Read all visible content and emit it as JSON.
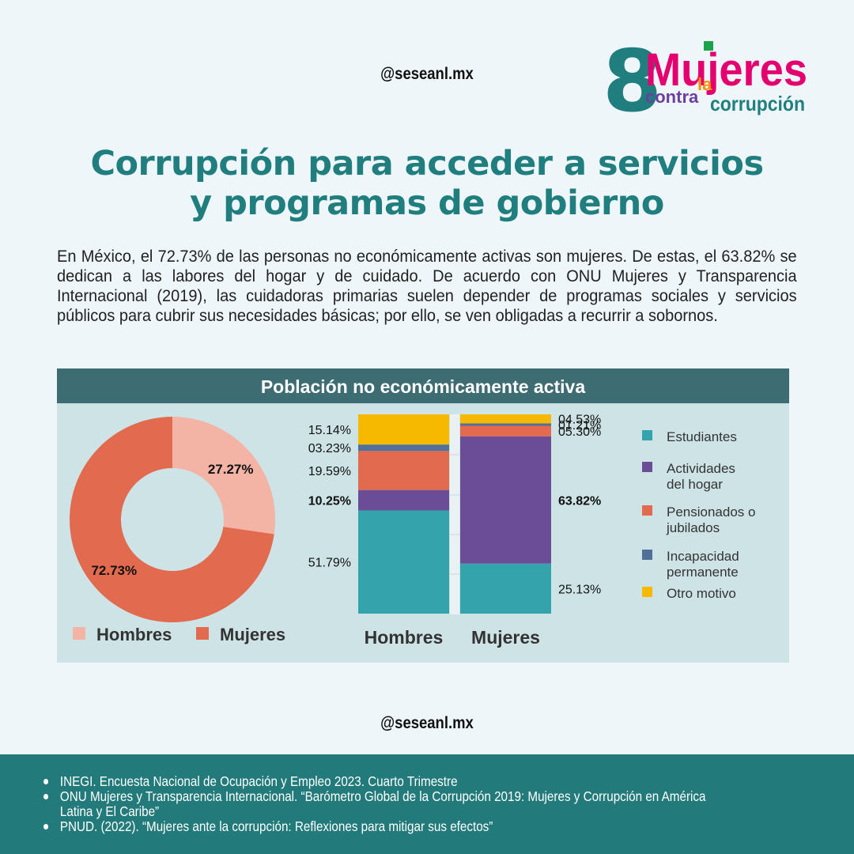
{
  "handle_top": "@seseanl.mx",
  "handle_bottom": "@seseanl.mx",
  "logo": {
    "number": "8",
    "word1": "Mujeres",
    "word2": "contra",
    "word3": "la",
    "word4": "corrupción"
  },
  "title_lines": [
    "Corrupción para acceder a servicios",
    "y programas de gobierno"
  ],
  "intro": "En México, el 72.73% de las personas no económicamente activas son mujeres. De estas, el 63.82% se dedican a las labores del hogar y de cuidado. De acuerdo con ONU Mujeres y Transparencia Internacional (2019), las cuidadoras primarias suelen depender de programas sociales y servicios públicos para cubrir sus necesidades básicas; por ello, se ven obligadas a recurrir a sobornos.",
  "panel_title": "Población no económicamente activa",
  "colors": {
    "teal": "#34a3ab",
    "purple": "#6b4c96",
    "orange": "#e26a4f",
    "blue": "#50709a",
    "yellow": "#f6b900",
    "pink": "#f3b4a5",
    "header": "#3d6c72",
    "title": "#207e7f"
  },
  "chart_data": [
    {
      "type": "pie",
      "labels": [
        "Hombres",
        "Mujeres"
      ],
      "values": [
        27.27,
        72.73
      ],
      "value_labels": [
        "27.27%",
        "72.73%"
      ],
      "colors": [
        "#f3b4a5",
        "#e26a4f"
      ],
      "legend_position": "bottom"
    },
    {
      "type": "bar",
      "stacked": true,
      "categories": [
        "Hombres",
        "Mujeres"
      ],
      "series": [
        {
          "name": "Estudiantes",
          "values": [
            51.79,
            25.13
          ],
          "labels": [
            "51.79%",
            "25.13%"
          ],
          "color": "#34a3ab"
        },
        {
          "name": "Actividades del hogar",
          "values": [
            10.25,
            63.82
          ],
          "labels": [
            "10.25%",
            "63.82%"
          ],
          "color": "#6b4c96"
        },
        {
          "name": "Pensionados o jubilados",
          "values": [
            19.59,
            5.3
          ],
          "labels": [
            "19.59%",
            "05.30%"
          ],
          "color": "#e26a4f"
        },
        {
          "name": "Incapacidad permanente",
          "values": [
            3.23,
            1.21
          ],
          "labels": [
            "03.23%",
            "01.21%"
          ],
          "color": "#50709a"
        },
        {
          "name": "Otro motivo",
          "values": [
            15.14,
            4.53
          ],
          "labels": [
            "15.14%",
            "04.53%"
          ],
          "color": "#f6b900"
        }
      ],
      "legend_entries": [
        [
          "Estudiantes"
        ],
        [
          "Actividades",
          "del hogar"
        ],
        [
          "Pensionados o",
          "jubilados"
        ],
        [
          "Incapacidad",
          "permanente"
        ],
        [
          "Otro motivo"
        ]
      ],
      "ylim": [
        0,
        100
      ],
      "legend_position": "right"
    }
  ],
  "sources": [
    [
      "INEGI. Encuesta Nacional de Ocupación y Empleo 2023. Cuarto Trimestre"
    ],
    [
      "ONU Mujeres y Transparencia Internacional. “Barómetro Global de la Corrupción 2019: Mujeres y Corrupción en América",
      "Latina y El Caribe”"
    ],
    [
      "PNUD. (2022). “Mujeres ante la corrupción: Reflexiones para mitigar sus efectos”"
    ]
  ]
}
